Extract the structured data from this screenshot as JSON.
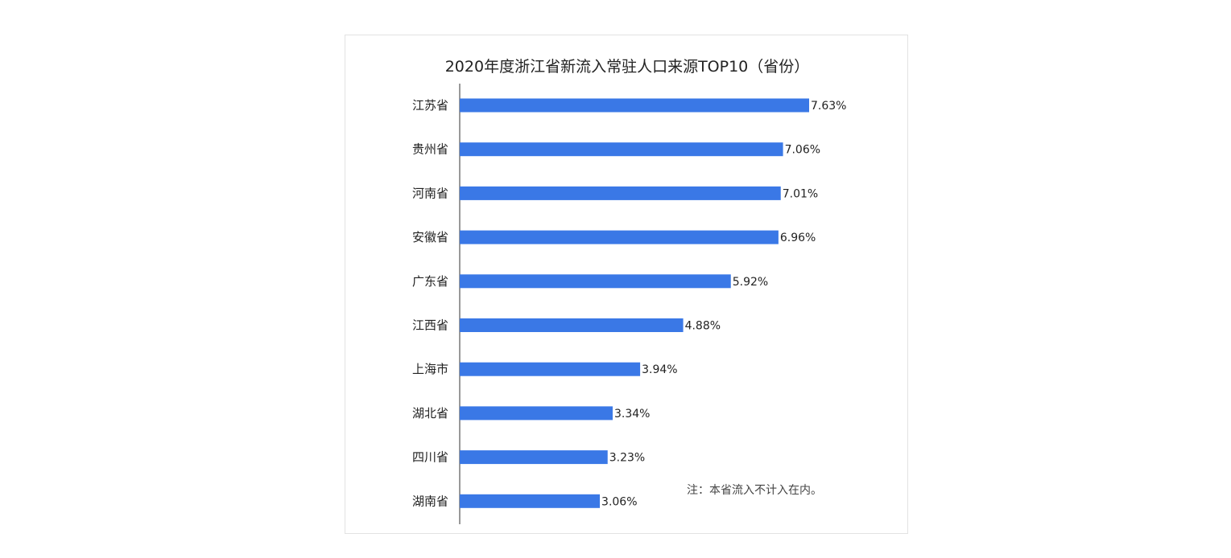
{
  "chart_data": {
    "type": "bar",
    "orientation": "horizontal",
    "title": "2020年度浙江省新流入常驻人口来源TOP10（省份）",
    "categories": [
      "江苏省",
      "贵州省",
      "河南省",
      "安徽省",
      "广东省",
      "江西省",
      "上海市",
      "湖北省",
      "四川省",
      "湖南省"
    ],
    "values": [
      7.63,
      7.06,
      7.01,
      6.96,
      5.92,
      4.88,
      3.94,
      3.34,
      3.23,
      3.06
    ],
    "value_labels": [
      "7.63%",
      "7.06%",
      "7.01%",
      "6.96%",
      "5.92%",
      "4.88%",
      "3.94%",
      "3.34%",
      "3.23%",
      "3.06%"
    ],
    "unit": "%",
    "xlim": [
      0,
      7.63
    ],
    "xlabel": "",
    "ylabel": "",
    "grid": false,
    "legend": "none",
    "bar_color": "#3a78e6",
    "annotation": "注：本省流入不计入在内。"
  }
}
